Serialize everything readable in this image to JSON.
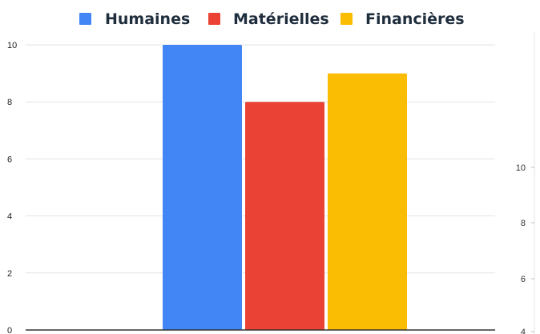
{
  "chart_data": {
    "type": "bar",
    "categories": [
      ""
    ],
    "series": [
      {
        "name": "Humaines",
        "values": [
          10
        ],
        "color": "#4285F4"
      },
      {
        "name": "Matérielles",
        "values": [
          8
        ],
        "color": "#EA4335"
      },
      {
        "name": "Financières",
        "values": [
          9
        ],
        "color": "#FBBC04"
      }
    ],
    "title": "",
    "xlabel": "",
    "ylabel": "",
    "ylim": [
      0,
      10
    ],
    "yticks": [
      "0",
      "2",
      "4",
      "6",
      "8",
      "10"
    ],
    "grid": true,
    "legend": "top",
    "secondary_axis_ticks": [
      "10",
      "8",
      "6",
      "4"
    ]
  }
}
